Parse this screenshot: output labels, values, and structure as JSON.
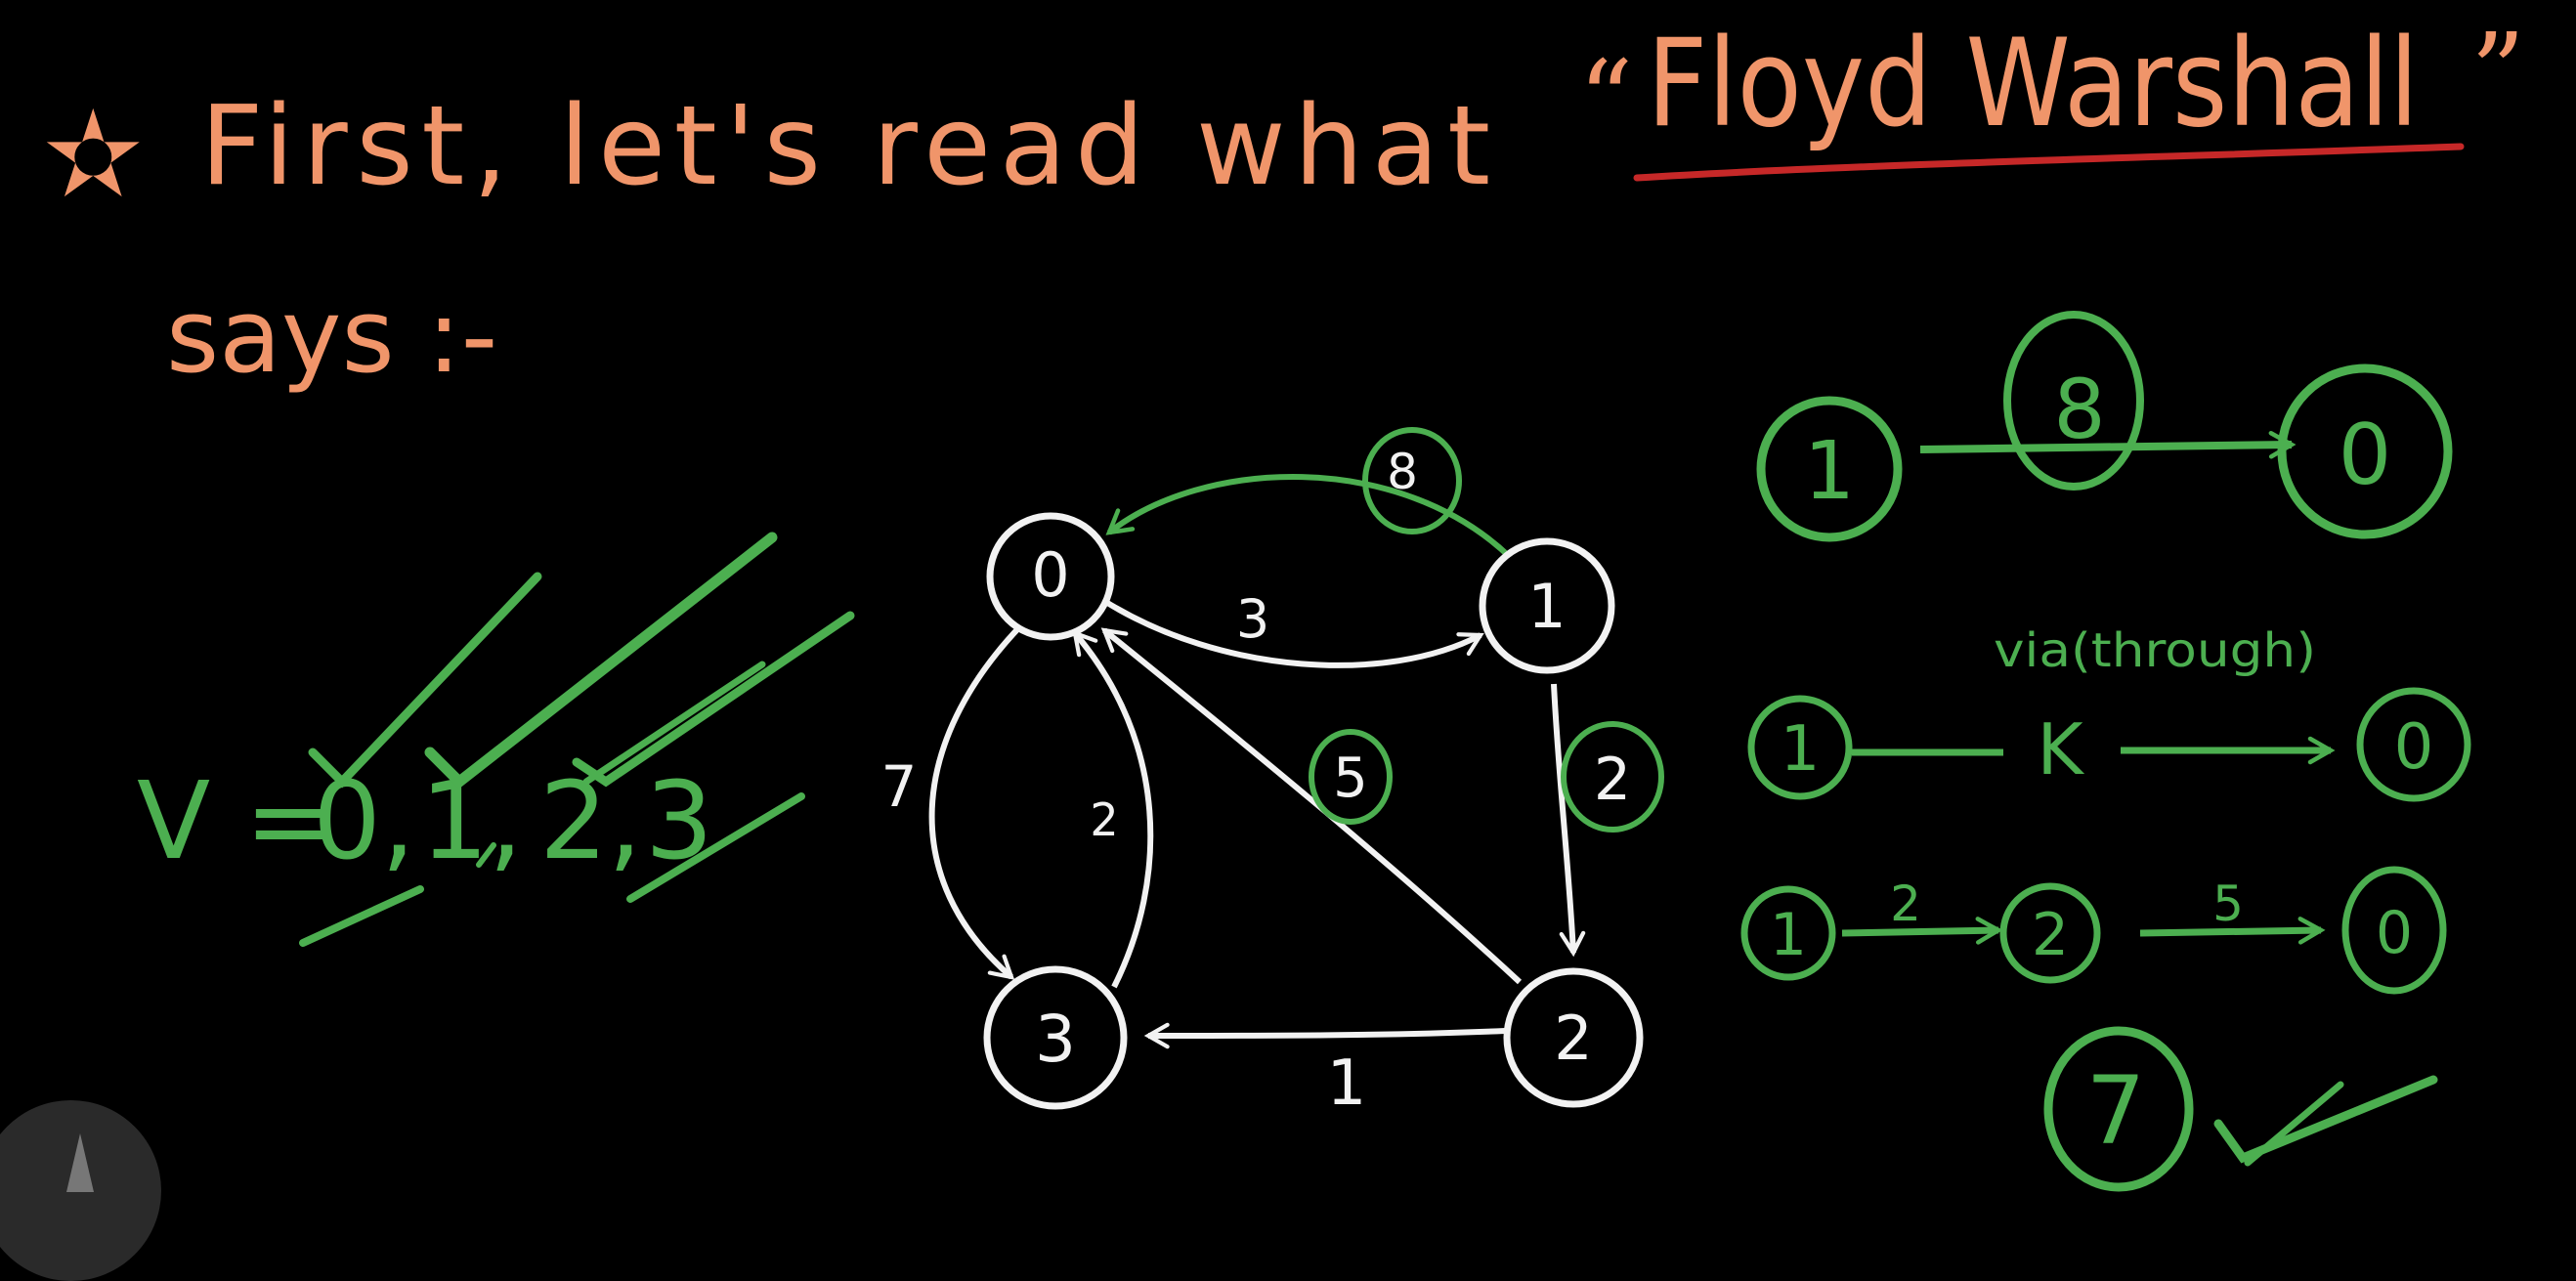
{
  "heading": {
    "star": "✫",
    "line1": "First, let's read what",
    "quote_open": "“",
    "highlight": "Floyd Warshall",
    "quote_close": "”",
    "line2": "says :-"
  },
  "vertices": {
    "prefix": "V =",
    "items": [
      "0,",
      "1,",
      "2,",
      "3"
    ]
  },
  "graph": {
    "nodes": [
      "0",
      "1",
      "2",
      "3"
    ],
    "edge_labels": {
      "e_1_0": "8",
      "e_0_1": "3",
      "e_0_3": "7",
      "e_3_0": "2",
      "e_2_0": "5",
      "e_1_2": "2",
      "e_2_3": "1"
    }
  },
  "notes": {
    "row1": {
      "from": "1",
      "weight": "8",
      "to": "0"
    },
    "via_label": "via(through)",
    "row2": {
      "from": "1",
      "mid": "K",
      "to": "0"
    },
    "row3": {
      "from": "1",
      "w1": "2",
      "mid": "2",
      "w2": "5",
      "to": "0"
    },
    "result": "7"
  },
  "colors": {
    "orange": "#f0956a",
    "green": "#4caf50",
    "white": "#f2f2f2",
    "red_underline": "#c62828",
    "background": "#000000"
  }
}
